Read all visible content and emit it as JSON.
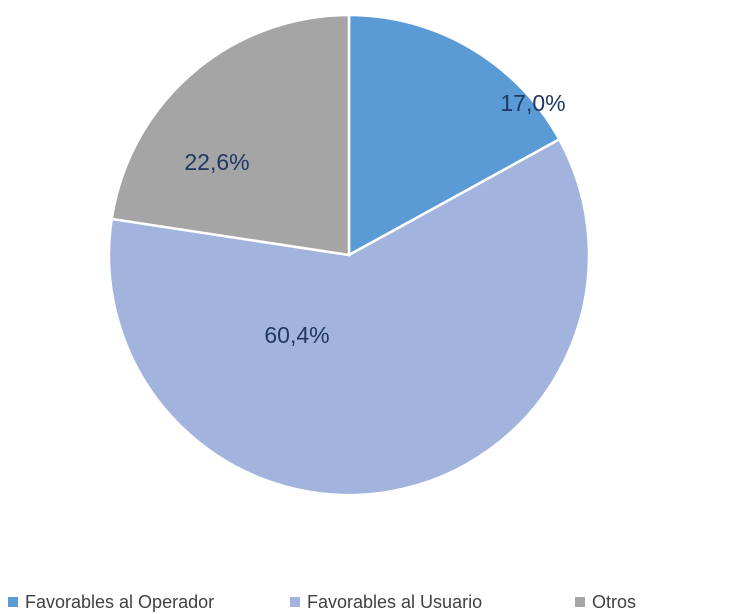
{
  "chart_data": {
    "type": "pie",
    "categories": [
      "Favorables al Operador",
      "Favorables al Usuario",
      "Otros"
    ],
    "values": [
      17.0,
      60.4,
      22.6
    ],
    "value_labels": [
      "17,0%",
      "60,4%",
      "22,6%"
    ],
    "colors": [
      "#5b9bd5",
      "#a2b4de",
      "#a5a5a5"
    ],
    "legend": "bottom"
  }
}
